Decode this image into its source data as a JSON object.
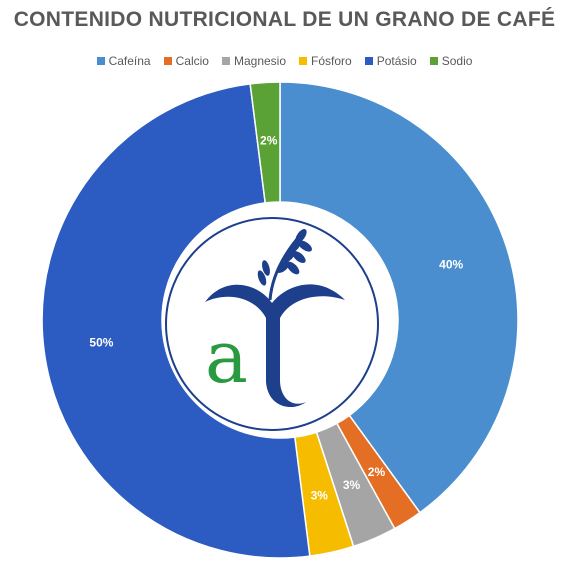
{
  "chart_data": {
    "type": "pie",
    "title": "CONTENIDO NUTRICIONAL DE UN GRANO DE CAFÉ",
    "series": [
      {
        "name": "Cafeína",
        "value": 40,
        "label": "40%",
        "color": "#4a8ed0"
      },
      {
        "name": "Calcio",
        "value": 2,
        "label": "2%",
        "color": "#e46f24"
      },
      {
        "name": "Magnesio",
        "value": 3,
        "label": "3%",
        "color": "#a5a5a5"
      },
      {
        "name": "Fósforo",
        "value": 3,
        "label": "3%",
        "color": "#f5bc00"
      },
      {
        "name": "Potásio",
        "value": 50,
        "label": "50%",
        "color": "#2c5cc2"
      },
      {
        "name": "Sodio",
        "value": 2,
        "label": "2%",
        "color": "#5aa136"
      }
    ],
    "legend_position": "top",
    "style": "donut"
  },
  "logo": {
    "name": "center-logo",
    "colors": {
      "blue": "#1d3f8c",
      "green": "#2a9a40"
    }
  }
}
